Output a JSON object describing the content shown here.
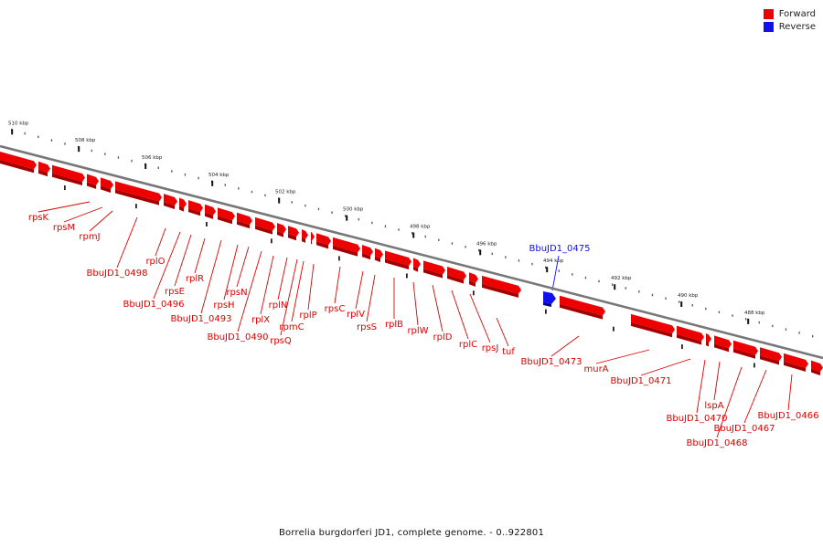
{
  "legend": {
    "forward": {
      "label": "Forward",
      "color": "#ee0000"
    },
    "reverse": {
      "label": "Reverse",
      "color": "#1111ee"
    }
  },
  "caption": "Borrelia burgdorferi JD1, complete genome. - 0..922801",
  "ticks": [
    "510 kbp",
    "508 kbp",
    "506 kbp",
    "504 kbp",
    "502 kbp",
    "500 kbp",
    "498 kbp",
    "496 kbp",
    "494 kbp",
    "492 kbp",
    "490 kbp",
    "488 kbp"
  ],
  "genes": {
    "forward": [
      "rpsK",
      "rpsM",
      "rpmJ",
      "BbuJD1_0498",
      "rplO",
      "BbuJD1_0496",
      "rpsE",
      "rplR",
      "BbuJD1_0493",
      "rpsH",
      "rpsN",
      "BbuJD1_0490",
      "rplX",
      "rplN",
      "rpsQ",
      "rpmC",
      "rplP",
      "rpsC",
      "rplV",
      "rpsS",
      "rplB",
      "rplW",
      "rplD",
      "rplC",
      "rpsJ",
      "tuf",
      "BbuJD1_0473",
      "murA",
      "BbuJD1_0471",
      "BbuJD1_0470",
      "lspA",
      "BbuJD1_0468",
      "BbuJD1_0467",
      "BbuJD1_0466"
    ],
    "reverse": [
      "BbuJD1_0475"
    ]
  }
}
